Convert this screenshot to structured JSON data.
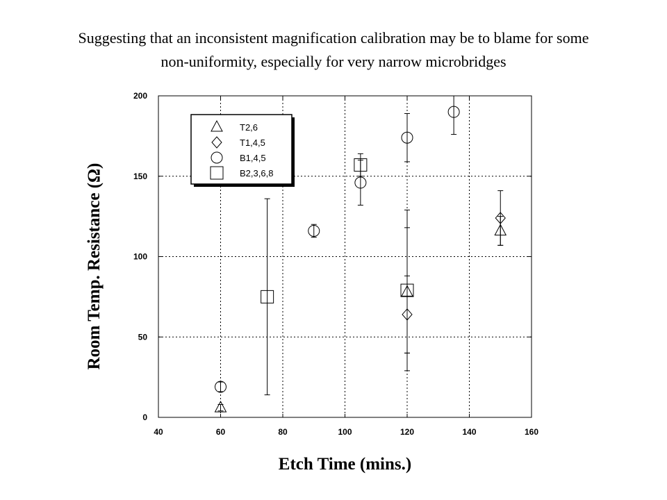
{
  "slide": {
    "title_line1": "Suggesting that an inconsistent magnification calibration may be to blame for some",
    "title_line2": "non-uniformity, especially for very narrow microbridges"
  },
  "chart_data": {
    "type": "scatter",
    "title": "",
    "xlabel": "Etch Time (mins.)",
    "ylabel": "Room Temp. Resistance (Ω)",
    "xlim": [
      40,
      160
    ],
    "ylim": [
      0,
      200
    ],
    "xticks": [
      40,
      60,
      80,
      100,
      120,
      140,
      160
    ],
    "yticks": [
      0,
      50,
      100,
      150,
      200
    ],
    "grid": true,
    "legend_position": "top-left",
    "series": [
      {
        "name": "T2,6",
        "marker": "triangle",
        "points": [
          {
            "x": 60,
            "y": 6,
            "err_low": 4,
            "err_high": 8
          },
          {
            "x": 120,
            "y": 78,
            "err_low": 40,
            "err_high": 118
          },
          {
            "x": 150,
            "y": 116,
            "err_low": 107,
            "err_high": 125
          }
        ]
      },
      {
        "name": "T1,4,5",
        "marker": "diamond",
        "points": [
          {
            "x": 120,
            "y": 64,
            "err_low": 40,
            "err_high": 88
          },
          {
            "x": 150,
            "y": 124,
            "err_low": 107,
            "err_high": 141
          }
        ]
      },
      {
        "name": "B1,4,5",
        "marker": "circle",
        "points": [
          {
            "x": 60,
            "y": 19,
            "err_low": 16,
            "err_high": 22
          },
          {
            "x": 90,
            "y": 116,
            "err_low": 112,
            "err_high": 120
          },
          {
            "x": 105,
            "y": 146,
            "err_low": 132,
            "err_high": 160
          },
          {
            "x": 120,
            "y": 174,
            "err_low": 159,
            "err_high": 189
          },
          {
            "x": 135,
            "y": 190,
            "err_low": 176,
            "err_high": 200
          }
        ]
      },
      {
        "name": "B2,3,6,8",
        "marker": "square",
        "points": [
          {
            "x": 75,
            "y": 75,
            "err_low": 14,
            "err_high": 136
          },
          {
            "x": 105,
            "y": 157,
            "err_low": 150,
            "err_high": 164
          },
          {
            "x": 120,
            "y": 79,
            "err_low": 29,
            "err_high": 129
          }
        ]
      }
    ]
  }
}
